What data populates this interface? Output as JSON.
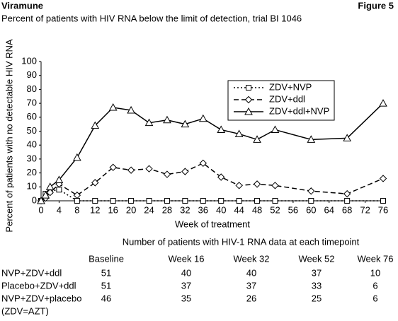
{
  "header": {
    "title": "Viramune",
    "figure": "Figure 5"
  },
  "chart_data": {
    "type": "line",
    "title": "Percent of patients with HIV RNA below the limit of detection, trial BI 1046",
    "x_label": "Week of treatment",
    "y_label": "Percent of patients with no detectable HIV RNA",
    "x": [
      0,
      1,
      2,
      4,
      8,
      12,
      16,
      20,
      24,
      28,
      32,
      36,
      40,
      44,
      48,
      52,
      60,
      68,
      76
    ],
    "series": [
      {
        "name": "ZDV+NVP",
        "color": "#000000",
        "marker": "square",
        "dash": "dotted",
        "values": [
          0,
          5,
          7,
          8,
          0,
          0,
          0,
          0,
          0,
          0,
          0,
          0,
          0,
          0,
          0,
          0,
          0,
          0,
          0
        ]
      },
      {
        "name": "ZDV+ddl",
        "color": "#000000",
        "marker": "diamond",
        "dash": "dashed",
        "values": [
          0,
          2,
          6,
          12,
          4,
          13,
          24,
          22,
          23,
          19,
          21,
          27,
          17,
          11,
          12,
          11,
          7,
          5,
          16
        ]
      },
      {
        "name": "ZDV+ddl+NVP",
        "color": "#000000",
        "marker": "triangle",
        "dash": "solid",
        "values": [
          0,
          4,
          10,
          15,
          31,
          54,
          67,
          65,
          56,
          58,
          55,
          59,
          51,
          48,
          44,
          51,
          44,
          45,
          70
        ]
      }
    ],
    "xlim": [
      0,
      76
    ],
    "xticks": [
      0,
      4,
      8,
      12,
      16,
      20,
      24,
      28,
      32,
      36,
      40,
      44,
      48,
      52,
      56,
      60,
      64,
      68,
      72,
      76
    ],
    "ylim": [
      0,
      100
    ],
    "yticks": [
      0,
      10,
      20,
      30,
      40,
      50,
      60,
      70,
      80,
      90,
      100
    ],
    "grid": false,
    "legend": "upper right"
  },
  "table": {
    "title": "Number of patients with HIV-1 RNA data at each timepoint",
    "columns": [
      "Baseline",
      "Week 16",
      "Week 32",
      "Week 52",
      "Week 76"
    ],
    "rows": [
      {
        "label": "NVP+ZDV+ddl",
        "cells": [
          51,
          40,
          40,
          37,
          10
        ]
      },
      {
        "label": "Placebo+ZDV+ddl",
        "cells": [
          51,
          37,
          37,
          33,
          6
        ]
      },
      {
        "label": "NVP+ZDV+placebo",
        "cells": [
          46,
          35,
          26,
          25,
          6
        ]
      }
    ],
    "footnote": "(ZDV=AZT)"
  }
}
